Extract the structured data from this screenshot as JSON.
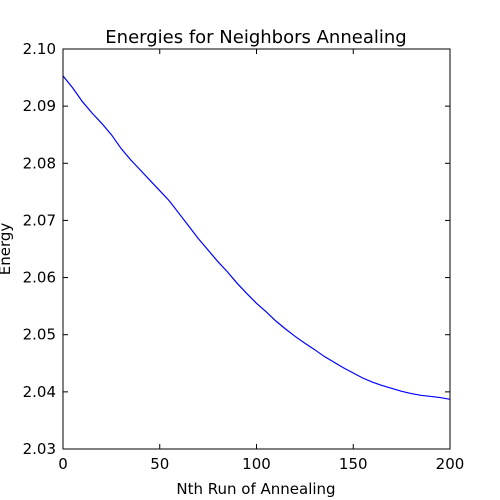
{
  "chart_data": {
    "type": "line",
    "title": "Energies for Neighbors Annealing",
    "xlabel": "Nth Run of Annealing",
    "ylabel": "Energy",
    "xlim": [
      0,
      200
    ],
    "ylim": [
      2.03,
      2.1
    ],
    "xticks": [
      "0",
      "50",
      "100",
      "150",
      "200"
    ],
    "yticks": [
      "2.03",
      "2.04",
      "2.05",
      "2.06",
      "2.07",
      "2.08",
      "2.09",
      "2.10"
    ],
    "grid": false,
    "legend": "none",
    "series": [
      {
        "color": "#0000ff",
        "x": [
          0,
          5,
          10,
          15,
          20,
          25,
          30,
          35,
          40,
          45,
          50,
          55,
          60,
          65,
          70,
          75,
          80,
          85,
          90,
          95,
          100,
          105,
          110,
          115,
          120,
          125,
          130,
          135,
          140,
          145,
          150,
          155,
          160,
          165,
          170,
          175,
          180,
          185,
          190,
          195,
          200
        ],
        "y": [
          2.0953,
          2.0932,
          2.0908,
          2.0888,
          2.087,
          2.085,
          2.0826,
          2.0806,
          2.0788,
          2.077,
          2.0752,
          2.0734,
          2.0712,
          2.069,
          2.0668,
          2.0648,
          2.0628,
          2.061,
          2.059,
          2.0572,
          2.0555,
          2.054,
          2.0524,
          2.051,
          2.0497,
          2.0485,
          2.0474,
          2.0462,
          2.0452,
          2.0442,
          2.0433,
          2.0424,
          2.0417,
          2.0411,
          2.0406,
          2.0401,
          2.0397,
          2.0394,
          2.0392,
          2.039,
          2.0387
        ]
      }
    ]
  }
}
